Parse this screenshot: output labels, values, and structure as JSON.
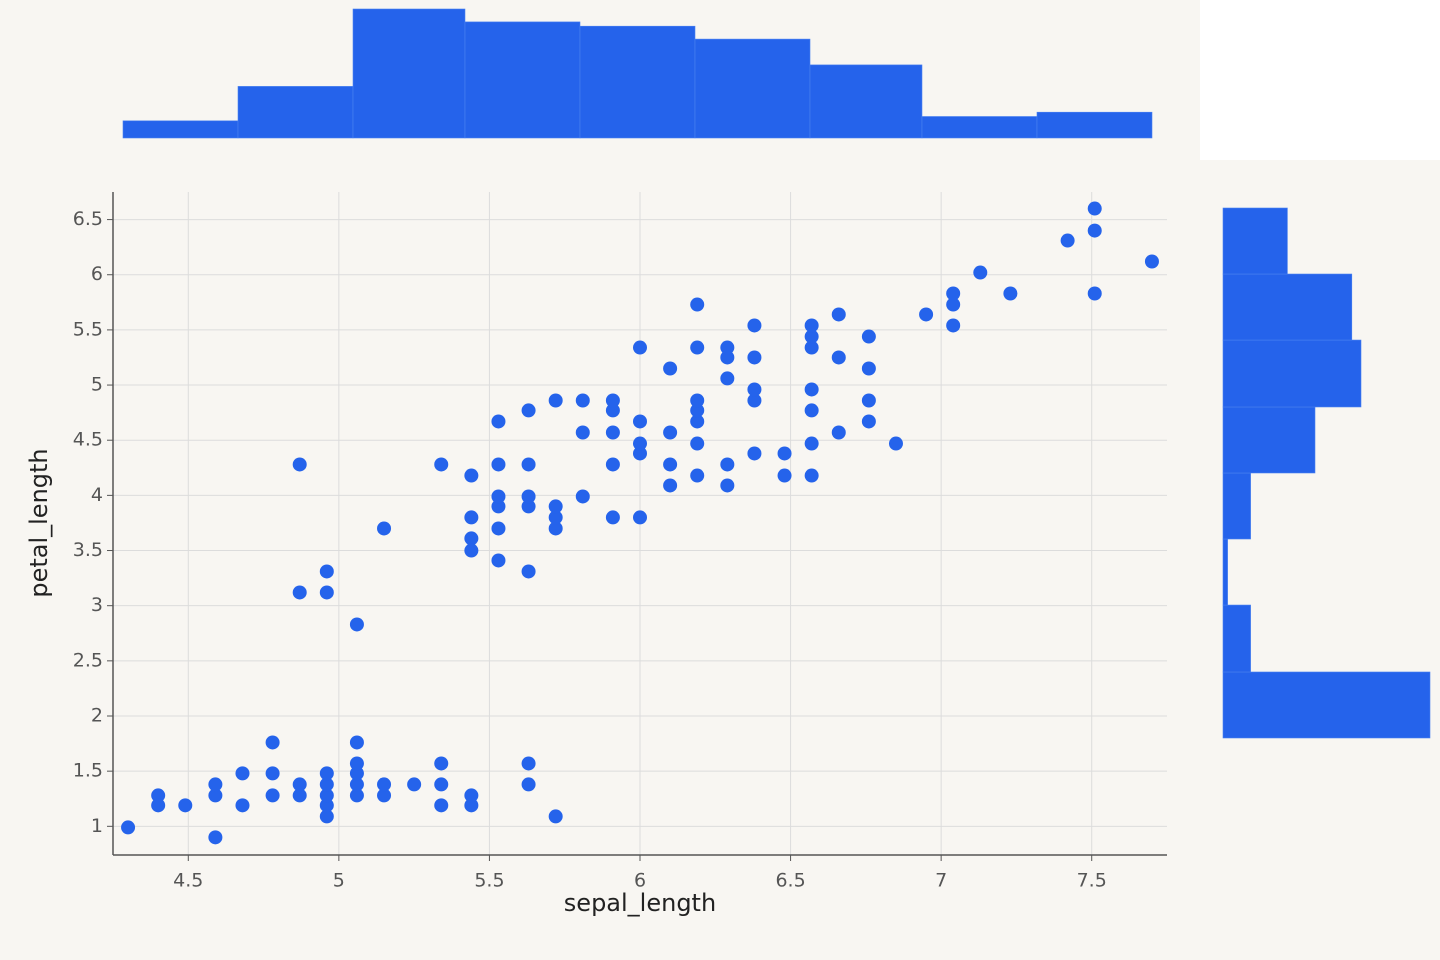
{
  "chart_data": [
    {
      "type": "scatter",
      "x_label": "sepal_length",
      "y_label": "petal_length",
      "color": "#2563eb",
      "grid": true,
      "xlim": [
        4.25,
        7.75
      ],
      "ylim": [
        0.74,
        6.75
      ],
      "xticks": [
        4.5,
        5,
        5.5,
        6,
        6.5,
        7,
        7.5
      ],
      "yticks": [
        1,
        1.5,
        2,
        2.5,
        3,
        3.5,
        4,
        4.5,
        5,
        5.5,
        6,
        6.5
      ],
      "x": [
        4.3,
        4.4,
        4.4,
        4.49,
        4.59,
        4.59,
        4.59,
        4.68,
        4.68,
        4.78,
        4.78,
        4.78,
        4.87,
        4.87,
        4.87,
        4.87,
        4.96,
        4.96,
        4.96,
        4.96,
        4.96,
        4.96,
        4.96,
        5.06,
        5.06,
        5.06,
        5.06,
        5.06,
        5.06,
        5.15,
        5.15,
        5.15,
        5.25,
        5.34,
        5.34,
        5.34,
        5.34,
        5.44,
        5.44,
        5.44,
        5.44,
        5.44,
        5.44,
        5.53,
        5.53,
        5.53,
        5.53,
        5.53,
        5.53,
        5.63,
        5.63,
        5.63,
        5.63,
        5.63,
        5.63,
        5.63,
        5.72,
        5.72,
        5.72,
        5.72,
        5.72,
        5.81,
        5.81,
        5.81,
        5.91,
        5.91,
        5.91,
        5.91,
        5.91,
        6.0,
        6.0,
        6.0,
        6.0,
        6.0,
        6.1,
        6.1,
        6.1,
        6.1,
        6.19,
        6.19,
        6.19,
        6.19,
        6.19,
        6.19,
        6.19,
        6.29,
        6.29,
        6.29,
        6.29,
        6.29,
        6.38,
        6.38,
        6.38,
        6.38,
        6.38,
        6.48,
        6.48,
        6.57,
        6.57,
        6.57,
        6.57,
        6.57,
        6.57,
        6.57,
        6.66,
        6.66,
        6.66,
        6.76,
        6.76,
        6.76,
        6.76,
        6.85,
        6.95,
        7.04,
        7.04,
        7.04,
        7.13,
        7.23,
        7.42,
        7.51,
        7.51,
        7.51,
        7.7
      ],
      "y": [
        0.99,
        1.28,
        1.19,
        1.19,
        0.9,
        1.28,
        1.38,
        1.19,
        1.48,
        1.28,
        1.48,
        1.76,
        1.28,
        1.38,
        4.28,
        3.12,
        1.09,
        1.19,
        1.28,
        1.38,
        1.48,
        3.12,
        3.31,
        1.28,
        1.38,
        1.48,
        1.57,
        1.76,
        2.83,
        1.28,
        1.38,
        3.7,
        1.38,
        1.19,
        1.38,
        1.57,
        4.28,
        1.19,
        1.28,
        4.18,
        3.8,
        3.61,
        3.5,
        3.41,
        3.7,
        3.9,
        3.99,
        4.28,
        4.67,
        1.38,
        1.57,
        3.31,
        3.9,
        3.99,
        4.28,
        4.77,
        1.09,
        3.7,
        3.8,
        3.9,
        4.86,
        3.99,
        4.57,
        4.86,
        3.8,
        4.28,
        4.57,
        4.77,
        4.86,
        3.8,
        4.38,
        4.47,
        4.67,
        5.34,
        4.09,
        4.28,
        4.57,
        5.15,
        4.18,
        4.47,
        4.67,
        4.77,
        4.86,
        5.34,
        5.73,
        4.09,
        4.28,
        5.06,
        5.25,
        5.34,
        4.38,
        4.86,
        4.96,
        5.25,
        5.54,
        4.18,
        4.38,
        4.18,
        4.47,
        4.77,
        4.96,
        5.34,
        5.44,
        5.54,
        4.57,
        5.25,
        5.64,
        4.67,
        4.86,
        5.15,
        5.44,
        4.47,
        5.64,
        5.54,
        5.73,
        5.83,
        6.02,
        5.83,
        6.31,
        5.83,
        6.4,
        6.6,
        6.12
      ]
    },
    {
      "type": "histogram",
      "orientation": "vertical",
      "color": "#2563eb",
      "bins": [
        4.3,
        4.68,
        5.06,
        5.43,
        5.81,
        6.19,
        6.57,
        6.94,
        7.32,
        7.7
      ],
      "values": [
        4,
        12,
        30,
        27,
        26,
        23,
        17,
        5,
        6
      ],
      "xlim": [
        4.3,
        7.7
      ],
      "ylim": [
        0,
        30
      ]
    },
    {
      "type": "histogram",
      "orientation": "horizontal",
      "color": "#2563eb",
      "bins": [
        0.9,
        1.61,
        2.33,
        3.04,
        3.75,
        4.46,
        5.18,
        5.89,
        6.6
      ],
      "values": [
        45,
        6,
        1,
        6,
        20,
        30,
        28,
        14
      ],
      "xlim": [
        0,
        45
      ],
      "ylim": [
        0.9,
        6.6
      ]
    }
  ]
}
